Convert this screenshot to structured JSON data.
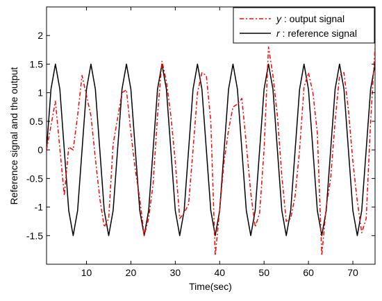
{
  "chart_data": {
    "type": "line",
    "xlabel": "Time(sec)",
    "ylabel": "Reference signal and the output",
    "xlim": [
      1,
      75
    ],
    "ylim": [
      -2,
      2.5
    ],
    "xticks": [
      10,
      20,
      30,
      40,
      50,
      60,
      70
    ],
    "yticks": [
      -1.5,
      -1,
      -0.5,
      0,
      0.5,
      1,
      1.5,
      2
    ],
    "grid": false,
    "legend_position": "top-right",
    "series": [
      {
        "name": "y : output signal",
        "legend_var": "y",
        "legend_text": " : output signal",
        "color": "#ff0000",
        "style": "dash-dot",
        "x": [
          1,
          3,
          5,
          6,
          7,
          8,
          9,
          10,
          11,
          12,
          13,
          14,
          15,
          16,
          17,
          18,
          19,
          20,
          21,
          22,
          23,
          24,
          25,
          26,
          27,
          28,
          29,
          30,
          31,
          32,
          33,
          34,
          35,
          36,
          37,
          38,
          39,
          40,
          41,
          42,
          43,
          44,
          45,
          46,
          47,
          48,
          49,
          50,
          51,
          52,
          53,
          54,
          55,
          56,
          57,
          58,
          59,
          60,
          61,
          62,
          63,
          64,
          65,
          66,
          67,
          68,
          69,
          70,
          71,
          72,
          73,
          74,
          75
        ],
        "y": [
          0,
          0.85,
          -0.8,
          0.05,
          0.0,
          0.6,
          1.3,
          0.95,
          0.6,
          -0.15,
          -0.85,
          -1.35,
          -1.2,
          0.1,
          0.55,
          1.0,
          1.05,
          0.3,
          -0.35,
          -0.85,
          -1.5,
          -1.2,
          -0.6,
          0.6,
          1.55,
          1.2,
          0.6,
          -0.2,
          -1.2,
          -1.1,
          -0.95,
          0.0,
          1.0,
          1.35,
          1.3,
          0.5,
          -1.85,
          -1.05,
          -0.2,
          0.35,
          0.75,
          0.8,
          0.9,
          0.1,
          -0.75,
          -1.35,
          -1.1,
          0.0,
          1.8,
          1.3,
          0.6,
          -0.45,
          -1.25,
          -1.2,
          -0.8,
          0.0,
          1.1,
          1.35,
          1.0,
          0.3,
          -1.85,
          -1.0,
          -0.5,
          0.5,
          1.3,
          1.35,
          0.7,
          -0.2,
          -0.9,
          -1.45,
          -1.2,
          0.5,
          1.8
        ]
      },
      {
        "name": "r : reference signal",
        "legend_var": "r",
        "legend_text": " : reference signal",
        "color": "#000000",
        "style": "solid",
        "x": [
          1,
          2,
          3,
          4,
          5,
          6,
          7,
          8,
          9,
          10,
          11,
          12,
          13,
          14,
          15,
          16,
          17,
          18,
          19,
          20,
          21,
          22,
          23,
          24,
          25,
          26,
          27,
          28,
          29,
          30,
          31,
          32,
          33,
          34,
          35,
          36,
          37,
          38,
          39,
          40,
          41,
          42,
          43,
          44,
          45,
          46,
          47,
          48,
          49,
          50,
          51,
          52,
          53,
          54,
          55,
          56,
          57,
          58,
          59,
          60,
          61,
          62,
          63,
          64,
          65,
          66,
          67,
          68,
          69,
          70,
          71,
          72,
          73,
          74,
          75
        ],
        "y": [
          0,
          1.0607,
          1.5,
          1.0607,
          0,
          -1.0607,
          -1.5,
          -1.0607,
          0,
          1.0607,
          1.5,
          1.0607,
          0,
          -1.0607,
          -1.5,
          -1.0607,
          0,
          1.0607,
          1.5,
          1.0607,
          0,
          -1.0607,
          -1.5,
          -1.0607,
          0,
          1.0607,
          1.5,
          1.0607,
          0,
          -1.0607,
          -1.5,
          -1.0607,
          0,
          1.0607,
          1.5,
          1.0607,
          0,
          -1.0607,
          -1.5,
          -1.0607,
          0,
          1.0607,
          1.5,
          1.0607,
          0,
          -1.0607,
          -1.5,
          -1.0607,
          0,
          1.0607,
          1.5,
          1.0607,
          0,
          -1.0607,
          -1.5,
          -1.0607,
          0,
          1.0607,
          1.5,
          1.0607,
          0,
          -1.0607,
          -1.5,
          -1.0607,
          0,
          1.0607,
          1.5,
          1.0607,
          0,
          -1.0607,
          -1.5,
          -1.0607,
          0,
          1.0607,
          1.5
        ]
      }
    ]
  }
}
